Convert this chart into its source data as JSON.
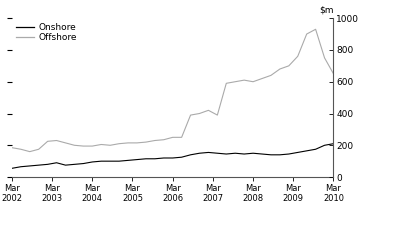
{
  "ylim": [
    0,
    1000
  ],
  "yticks": [
    0,
    200,
    400,
    600,
    800,
    1000
  ],
  "onshore_color": "#000000",
  "offshore_color": "#aaaaaa",
  "background_color": "#ffffff",
  "legend_labels": [
    "Onshore",
    "Offshore"
  ],
  "x_tick_labels": [
    "Mar\n2002",
    "Mar\n2003",
    "Mar\n2004",
    "Mar\n2005",
    "Mar\n2006",
    "Mar\n2007",
    "Mar\n2008",
    "Mar\n2009",
    "Mar\n2010"
  ],
  "onshore": [
    55,
    65,
    70,
    75,
    80,
    90,
    75,
    80,
    85,
    95,
    100,
    100,
    100,
    105,
    110,
    115,
    115,
    120,
    120,
    125,
    140,
    150,
    155,
    150,
    145,
    150,
    145,
    150,
    145,
    140,
    140,
    145,
    155,
    165,
    175,
    200,
    210
  ],
  "offshore": [
    185,
    175,
    160,
    175,
    225,
    230,
    215,
    200,
    195,
    195,
    205,
    200,
    210,
    215,
    215,
    220,
    230,
    235,
    250,
    250,
    390,
    400,
    420,
    390,
    590,
    600,
    610,
    600,
    620,
    640,
    680,
    700,
    760,
    900,
    930,
    750,
    650
  ]
}
